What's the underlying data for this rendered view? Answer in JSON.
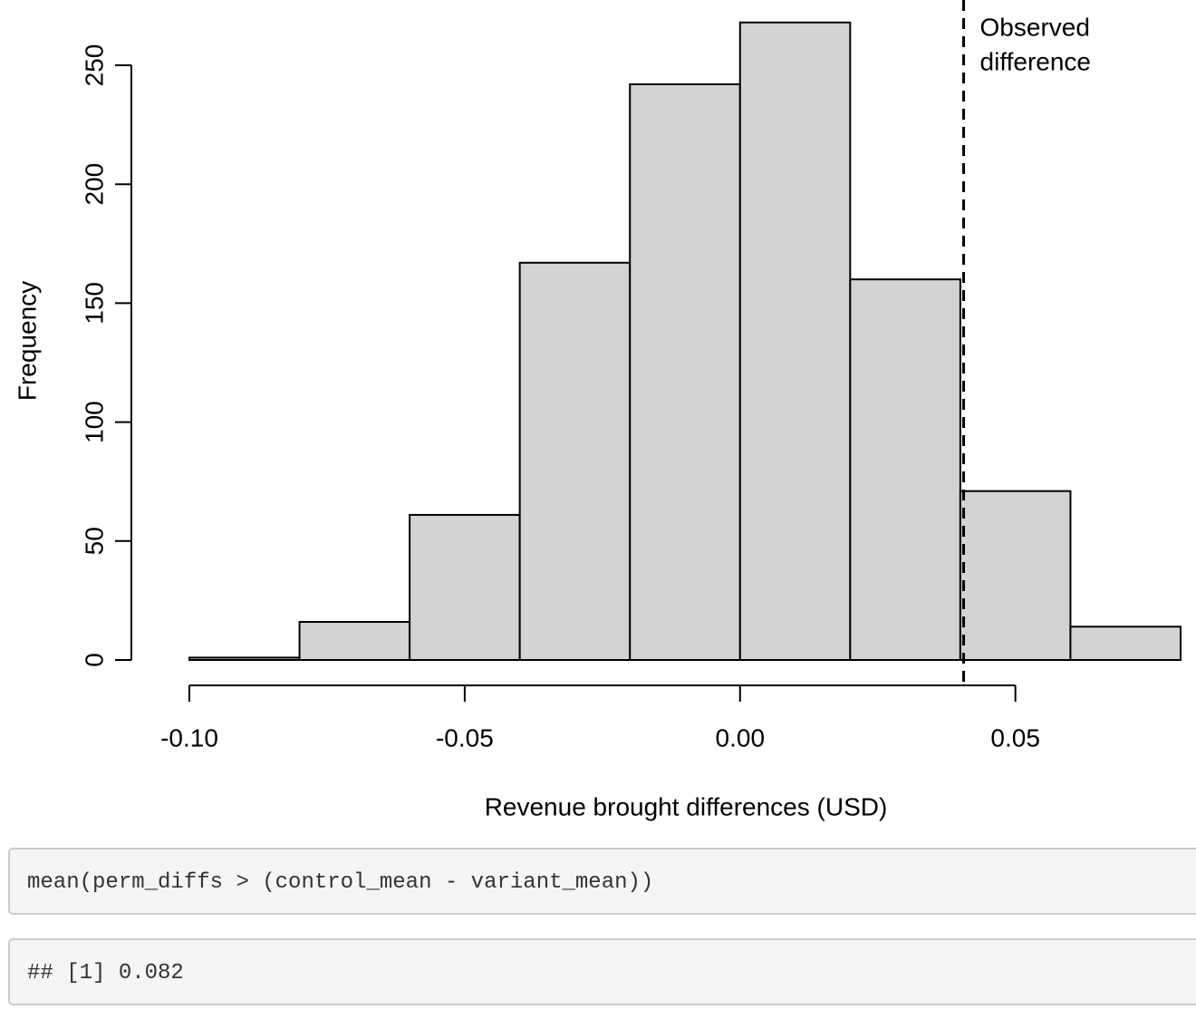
{
  "chart_data": {
    "type": "histogram",
    "xlabel": "Revenue brought differences (USD)",
    "ylabel": "Frequency",
    "bins": [
      -0.1,
      -0.08,
      -0.06,
      -0.04,
      -0.02,
      0,
      0.02,
      0.04,
      0.06,
      0.08
    ],
    "counts": [
      1,
      16,
      61,
      167,
      242,
      268,
      160,
      71,
      14
    ],
    "color": "#d3d3d3",
    "xlim": [
      -0.1,
      0.08
    ],
    "ylim": [
      0,
      250
    ],
    "xticks": [
      {
        "value": -0.1,
        "label": "-0.10"
      },
      -0.05,
      {
        "value": 0,
        "label": "0.00"
      },
      0.05
    ],
    "yticks": [
      0,
      50,
      100,
      150,
      200,
      250
    ],
    "annotation": {
      "x": 0.0406,
      "lines": [
        "Observed",
        "difference"
      ]
    }
  },
  "code": {
    "input": "mean(perm_diffs > (control_mean - variant_mean))",
    "output": "## [1] 0.082"
  }
}
